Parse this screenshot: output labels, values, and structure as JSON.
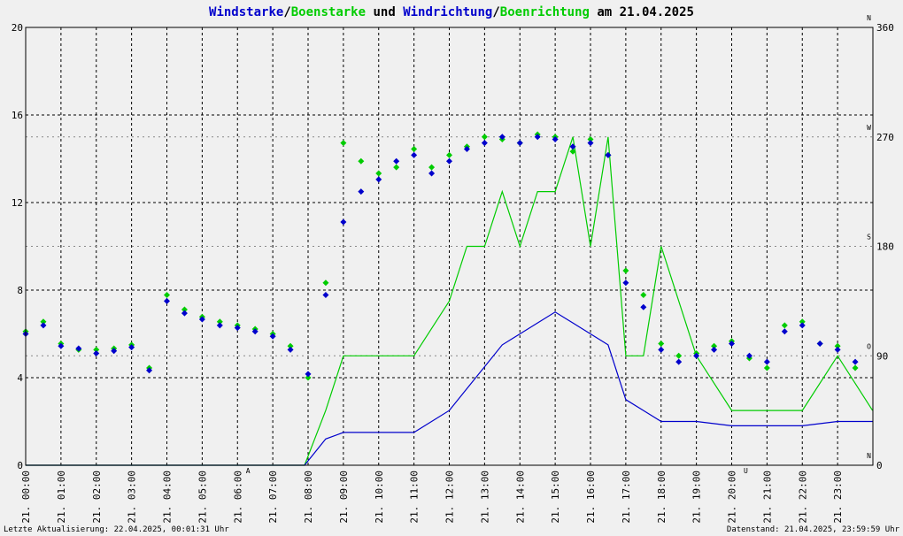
{
  "chart_data": {
    "type": "line",
    "title": {
      "parts": [
        {
          "text": "Windstarke",
          "color": "#0000cc"
        },
        {
          "text": "/",
          "color": "#000000"
        },
        {
          "text": "Boenstarke",
          "color": "#00cc00"
        },
        {
          "text": " und ",
          "color": "#000000"
        },
        {
          "text": "Windrichtung",
          "color": "#0000cc"
        },
        {
          "text": "/",
          "color": "#000000"
        },
        {
          "text": "Boenrichtung",
          "color": "#00cc00"
        },
        {
          "text": " am 21.04.2025",
          "color": "#000000"
        }
      ]
    },
    "x_range": [
      0,
      24
    ],
    "x_tick_labels": [
      "21. 00:00",
      "21. 01:00",
      "21. 02:00",
      "21. 03:00",
      "21. 04:00",
      "21. 05:00",
      "21. 06:00",
      "21. 07:00",
      "21. 08:00",
      "21. 09:00",
      "21. 10:00",
      "21. 11:00",
      "21. 12:00",
      "21. 13:00",
      "21. 14:00",
      "21. 15:00",
      "21. 16:00",
      "21. 17:00",
      "21. 18:00",
      "21. 19:00",
      "21. 20:00",
      "21. 21:00",
      "21. 22:00",
      "21. 23:00"
    ],
    "y_left": {
      "range": [
        0,
        20
      ],
      "ticks": [
        "0",
        "4",
        "8",
        "12",
        "16",
        "20"
      ]
    },
    "y_right": {
      "range": [
        0,
        360
      ],
      "ticks": [
        "0",
        "90",
        "180",
        "270",
        "360"
      ],
      "direction_letters": [
        "N",
        "O",
        "S",
        "W",
        "N"
      ]
    },
    "grid": true,
    "markers": [
      {
        "label": "A",
        "hour": 6.3
      },
      {
        "label": "U",
        "hour": 20.4
      }
    ],
    "colors": {
      "wind": "#0000cc",
      "gust": "#00cc00",
      "marker": "#ff0000",
      "background": "#f0f0f0"
    },
    "series": [
      {
        "name": "Windstarke",
        "color": "#0000cc",
        "kind": "line",
        "hours": [
          0,
          1,
          2,
          3,
          4,
          5,
          6,
          7,
          7.9,
          8.5,
          9,
          10,
          11,
          12,
          12.5,
          13,
          13.5,
          14,
          14.5,
          15,
          15.5,
          16,
          16.5,
          17,
          17.5,
          18,
          19,
          20,
          21,
          22,
          23,
          23.99
        ],
        "values": [
          0,
          0,
          0,
          0,
          0,
          0,
          0,
          0,
          0,
          1.2,
          1.5,
          1.5,
          1.5,
          2.5,
          3.5,
          4.5,
          5.5,
          6.0,
          6.5,
          7.0,
          6.5,
          6.0,
          5.5,
          3.0,
          2.5,
          2.0,
          2.0,
          1.8,
          1.8,
          1.8,
          2.0,
          2.0
        ]
      },
      {
        "name": "Boenstarke",
        "color": "#00cc00",
        "kind": "line",
        "hours": [
          0,
          1,
          2,
          3,
          4,
          5,
          6,
          7,
          7.9,
          8.5,
          9,
          10,
          11,
          12,
          12.5,
          13,
          13.5,
          14,
          14.5,
          15,
          15.5,
          16,
          16.5,
          17,
          17.5,
          18,
          19,
          20,
          21,
          22,
          23,
          23.99
        ],
        "values": [
          0,
          0,
          0,
          0,
          0,
          0,
          0,
          0,
          0,
          2.5,
          5.0,
          5.0,
          5.0,
          7.5,
          10.0,
          10.0,
          12.5,
          10.0,
          12.5,
          12.5,
          15.0,
          10.0,
          15.0,
          5.0,
          5.0,
          10.0,
          5.0,
          2.5,
          2.5,
          2.5,
          5.0,
          2.5
        ]
      },
      {
        "name": "Windrichtung",
        "color": "#0000cc",
        "kind": "scatter",
        "hours": [
          0,
          0.5,
          1,
          1.5,
          2,
          2.5,
          3,
          3.5,
          4,
          4.5,
          5,
          5.5,
          6,
          6.5,
          7,
          7.5,
          8,
          8.5,
          9,
          9.5,
          10,
          10.5,
          11,
          11.5,
          12,
          12.5,
          13,
          13.5,
          14,
          14.5,
          15,
          15.5,
          16,
          16.5,
          17,
          17.5,
          18,
          18.5,
          19,
          19.5,
          20,
          20.5,
          21,
          21.5,
          22,
          22.5,
          23,
          23.5
        ],
        "values": [
          108,
          115,
          98,
          96,
          92,
          94,
          97,
          78,
          135,
          125,
          120,
          115,
          113,
          110,
          106,
          95,
          75,
          140,
          200,
          225,
          235,
          250,
          255,
          240,
          250,
          260,
          265,
          270,
          265,
          270,
          268,
          262,
          265,
          255,
          150,
          130,
          95,
          85,
          90,
          95,
          100,
          90,
          85,
          110,
          115,
          100,
          95,
          85
        ]
      },
      {
        "name": "Boenrichtung",
        "color": "#00cc00",
        "kind": "scatter",
        "hours": [
          0,
          0.5,
          1,
          1.5,
          2,
          2.5,
          3,
          3.5,
          4,
          4.5,
          5,
          5.5,
          6,
          6.5,
          7,
          7.5,
          8,
          8.5,
          9,
          9.5,
          10,
          10.5,
          11,
          11.5,
          12,
          12.5,
          13,
          13.5,
          14,
          14.5,
          15,
          15.5,
          16,
          16.5,
          17,
          17.5,
          18,
          18.5,
          19,
          19.5,
          20,
          20.5,
          21,
          21.5,
          22,
          22.5,
          23,
          23.5
        ],
        "values": [
          110,
          118,
          100,
          95,
          95,
          96,
          99,
          80,
          140,
          128,
          122,
          118,
          115,
          112,
          108,
          98,
          72,
          150,
          265,
          250,
          240,
          245,
          260,
          245,
          255,
          262,
          270,
          268,
          265,
          272,
          270,
          258,
          268,
          255,
          160,
          140,
          100,
          90,
          92,
          98,
          102,
          88,
          80,
          115,
          118,
          100,
          98,
          80
        ]
      }
    ]
  },
  "footer": {
    "left": "Letzte Aktualisierung: 22.04.2025, 00:01:31 Uhr",
    "right": "Datenstand: 21.04.2025, 23:59:59 Uhr"
  }
}
